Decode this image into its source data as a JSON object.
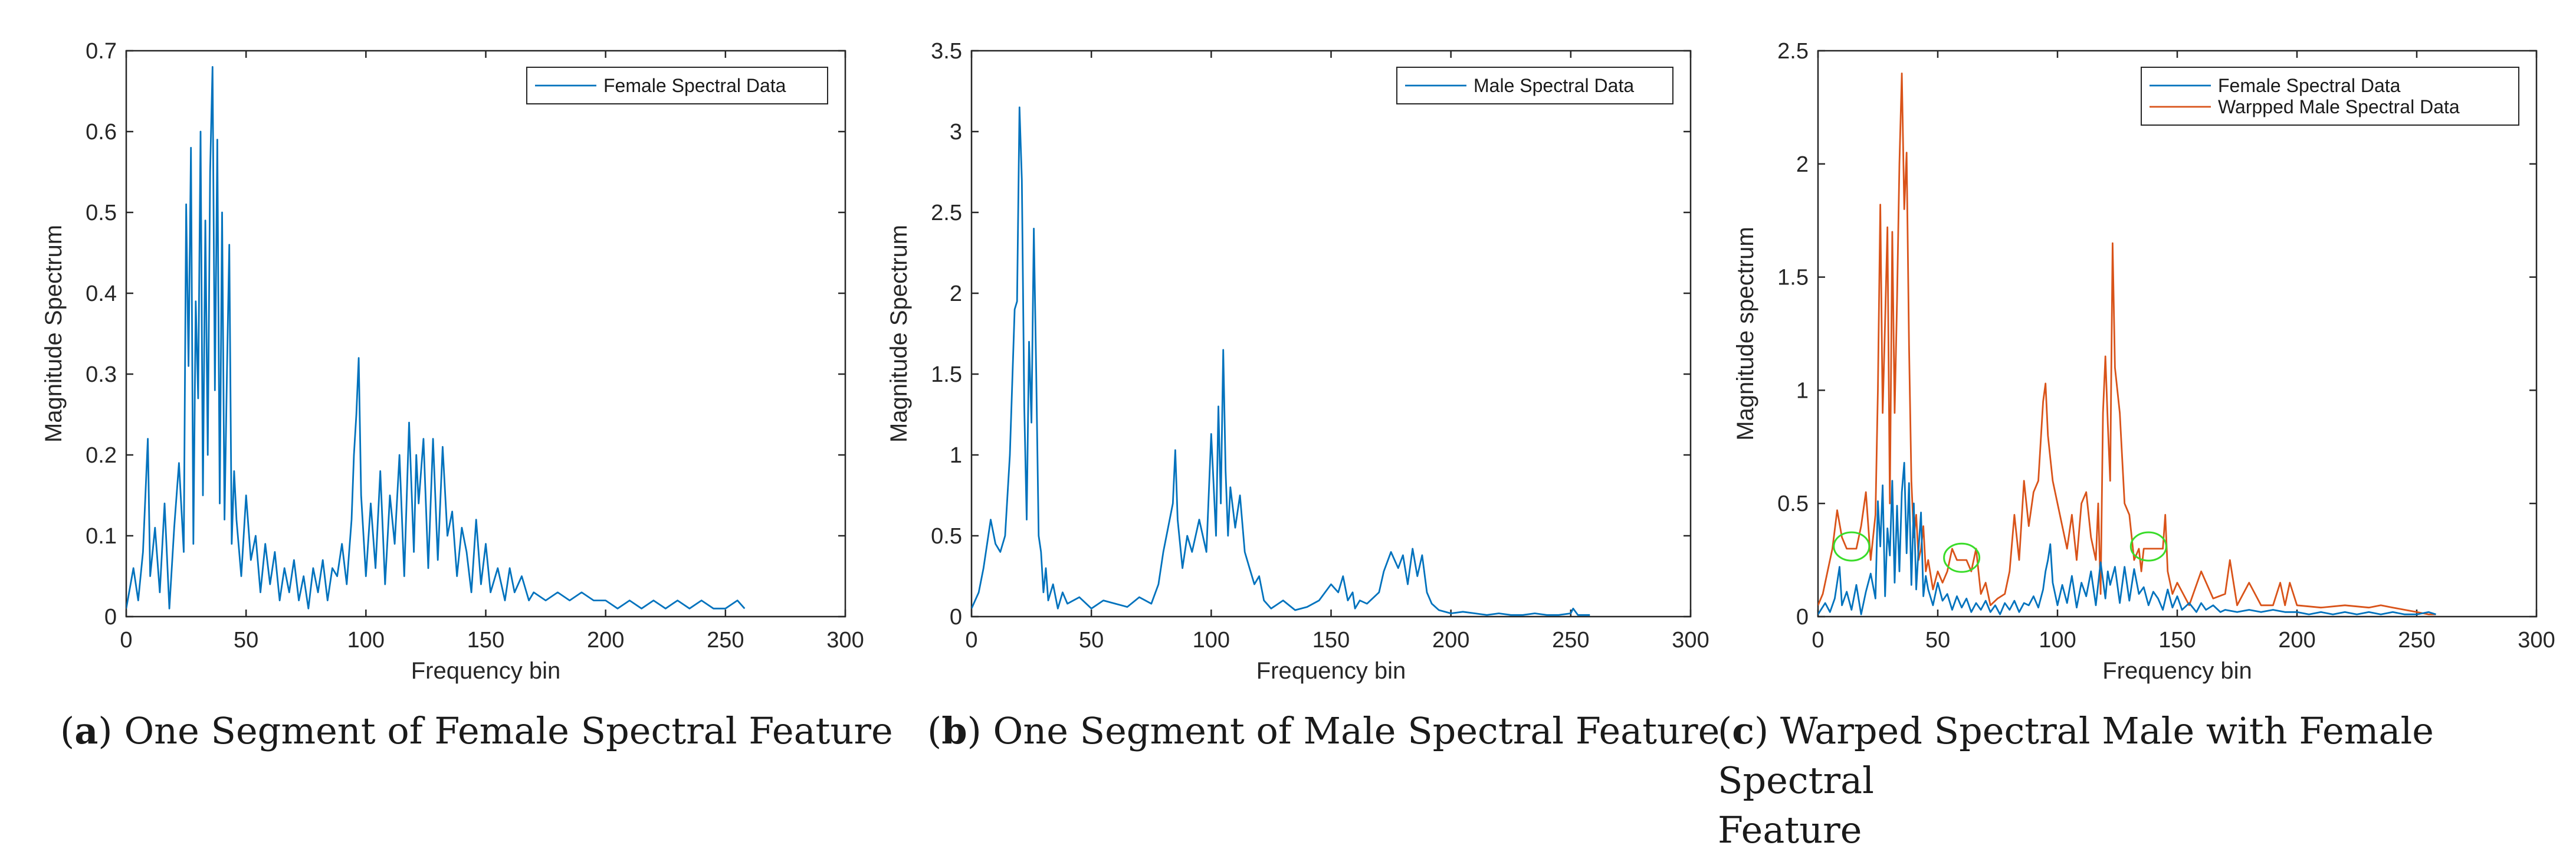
{
  "colors": {
    "blue": "#0072BD",
    "orange": "#D95319",
    "green": "#3ADC2A",
    "axis": "#262626"
  },
  "chart_data": [
    {
      "type": "line",
      "xlabel": "Frequency bin",
      "ylabel": "Magnitude Spectrum",
      "xlim": [
        0,
        300
      ],
      "ylim": [
        0,
        0.7
      ],
      "xticks": [
        0,
        50,
        100,
        150,
        200,
        250,
        300
      ],
      "yticks": [
        0,
        0.1,
        0.2,
        0.3,
        0.4,
        0.5,
        0.6,
        0.7
      ],
      "xtick_labels": [
        "0",
        "50",
        "100",
        "150",
        "200",
        "250",
        "300"
      ],
      "ytick_labels": [
        "0",
        "0.1",
        "0.2",
        "0.3",
        "0.4",
        "0.5",
        "0.6",
        "0.7"
      ],
      "legend_position": "top-right",
      "series": [
        {
          "name": "Female Spectral Data",
          "color": "#0072BD",
          "x": [
            0,
            3,
            5,
            7,
            9,
            10,
            12,
            14,
            16,
            18,
            20,
            22,
            24,
            25,
            26,
            27,
            28,
            29,
            30,
            31,
            32,
            33,
            34,
            35,
            36,
            37,
            38,
            39,
            40,
            41,
            42,
            43,
            44,
            45,
            46,
            48,
            50,
            52,
            54,
            56,
            58,
            60,
            62,
            64,
            66,
            68,
            70,
            72,
            74,
            76,
            78,
            80,
            82,
            84,
            86,
            88,
            90,
            92,
            94,
            95,
            96,
            97,
            98,
            100,
            102,
            104,
            106,
            108,
            110,
            112,
            114,
            116,
            118,
            120,
            121,
            122,
            124,
            126,
            128,
            130,
            132,
            134,
            136,
            138,
            140,
            142,
            144,
            146,
            148,
            150,
            152,
            155,
            158,
            160,
            162,
            165,
            168,
            170,
            175,
            180,
            185,
            190,
            195,
            200,
            205,
            210,
            215,
            220,
            225,
            230,
            235,
            240,
            245,
            250,
            255,
            258
          ],
          "y": [
            0.01,
            0.06,
            0.02,
            0.08,
            0.22,
            0.05,
            0.11,
            0.03,
            0.14,
            0.01,
            0.11,
            0.19,
            0.08,
            0.51,
            0.31,
            0.58,
            0.09,
            0.39,
            0.27,
            0.6,
            0.15,
            0.49,
            0.2,
            0.55,
            0.68,
            0.28,
            0.59,
            0.14,
            0.5,
            0.12,
            0.3,
            0.46,
            0.09,
            0.18,
            0.12,
            0.05,
            0.15,
            0.07,
            0.1,
            0.03,
            0.09,
            0.04,
            0.08,
            0.02,
            0.06,
            0.03,
            0.07,
            0.02,
            0.05,
            0.01,
            0.06,
            0.03,
            0.07,
            0.02,
            0.06,
            0.05,
            0.09,
            0.04,
            0.12,
            0.2,
            0.25,
            0.32,
            0.15,
            0.05,
            0.14,
            0.06,
            0.18,
            0.04,
            0.15,
            0.09,
            0.2,
            0.05,
            0.24,
            0.08,
            0.2,
            0.14,
            0.22,
            0.06,
            0.22,
            0.07,
            0.21,
            0.1,
            0.13,
            0.05,
            0.11,
            0.08,
            0.03,
            0.12,
            0.04,
            0.09,
            0.03,
            0.06,
            0.02,
            0.06,
            0.03,
            0.05,
            0.02,
            0.03,
            0.02,
            0.03,
            0.02,
            0.03,
            0.02,
            0.02,
            0.01,
            0.02,
            0.01,
            0.02,
            0.01,
            0.02,
            0.01,
            0.02,
            0.01,
            0.01,
            0.02,
            0.01
          ]
        }
      ]
    },
    {
      "type": "line",
      "xlabel": "Frequency bin",
      "ylabel": "Magnitude Spectrum",
      "xlim": [
        0,
        300
      ],
      "ylim": [
        0,
        3.5
      ],
      "xticks": [
        0,
        50,
        100,
        150,
        200,
        250,
        300
      ],
      "yticks": [
        0,
        0.5,
        1,
        1.5,
        2,
        2.5,
        3,
        3.5
      ],
      "xtick_labels": [
        "0",
        "50",
        "100",
        "150",
        "200",
        "250",
        "300"
      ],
      "ytick_labels": [
        "0",
        "0.5",
        "1",
        "1.5",
        "2",
        "2.5",
        "3",
        "3.5"
      ],
      "legend_position": "top-right",
      "series": [
        {
          "name": "Male Spectral Data",
          "color": "#0072BD",
          "x": [
            0,
            3,
            5,
            8,
            10,
            12,
            14,
            16,
            18,
            19,
            20,
            21,
            22,
            23,
            24,
            25,
            26,
            27,
            28,
            29,
            30,
            31,
            32,
            34,
            36,
            38,
            40,
            45,
            50,
            55,
            60,
            65,
            70,
            75,
            78,
            80,
            82,
            84,
            85,
            86,
            88,
            90,
            92,
            95,
            98,
            100,
            102,
            103,
            104,
            105,
            106,
            107,
            108,
            110,
            112,
            114,
            116,
            118,
            120,
            122,
            125,
            130,
            135,
            140,
            145,
            150,
            153,
            155,
            157,
            159,
            160,
            162,
            165,
            170,
            172,
            175,
            178,
            180,
            182,
            184,
            186,
            188,
            190,
            192,
            195,
            200,
            205,
            210,
            215,
            220,
            225,
            230,
            235,
            240,
            245,
            250,
            251,
            253,
            255,
            258
          ],
          "y": [
            0.05,
            0.15,
            0.3,
            0.6,
            0.45,
            0.4,
            0.5,
            1.0,
            1.9,
            1.95,
            3.15,
            2.7,
            1.3,
            0.6,
            1.7,
            1.2,
            2.4,
            1.5,
            0.5,
            0.4,
            0.15,
            0.3,
            0.1,
            0.2,
            0.05,
            0.15,
            0.08,
            0.12,
            0.05,
            0.1,
            0.08,
            0.06,
            0.12,
            0.08,
            0.2,
            0.4,
            0.55,
            0.7,
            1.03,
            0.6,
            0.3,
            0.5,
            0.4,
            0.6,
            0.4,
            1.13,
            0.5,
            1.3,
            0.7,
            1.65,
            0.9,
            0.5,
            0.8,
            0.55,
            0.75,
            0.4,
            0.3,
            0.2,
            0.25,
            0.1,
            0.05,
            0.1,
            0.04,
            0.06,
            0.1,
            0.2,
            0.15,
            0.25,
            0.1,
            0.15,
            0.05,
            0.1,
            0.08,
            0.15,
            0.28,
            0.4,
            0.3,
            0.38,
            0.2,
            0.42,
            0.25,
            0.38,
            0.15,
            0.08,
            0.04,
            0.02,
            0.03,
            0.02,
            0.01,
            0.02,
            0.01,
            0.01,
            0.02,
            0.01,
            0.01,
            0.02,
            0.05,
            0.01,
            0.01,
            0.01
          ]
        }
      ]
    },
    {
      "type": "line",
      "xlabel": "Frequency bin",
      "ylabel": "Magnitude spectrum",
      "xlim": [
        0,
        300
      ],
      "ylim": [
        0,
        2.5
      ],
      "xticks": [
        0,
        50,
        100,
        150,
        200,
        250,
        300
      ],
      "yticks": [
        0,
        0.5,
        1,
        1.5,
        2,
        2.5
      ],
      "xtick_labels": [
        "0",
        "50",
        "100",
        "150",
        "200",
        "250",
        "300"
      ],
      "ytick_labels": [
        "0",
        "0.5",
        "1",
        "1.5",
        "2",
        "2.5"
      ],
      "legend_position": "top-right",
      "annotations": [
        {
          "shape": "ellipse",
          "x": 14,
          "y": 0.31
        },
        {
          "shape": "ellipse",
          "x": 60,
          "y": 0.26
        },
        {
          "shape": "ellipse",
          "x": 138,
          "y": 0.31
        }
      ],
      "series": [
        {
          "name": "Female Spectral Data",
          "color": "#0072BD",
          "x": [
            0,
            3,
            5,
            7,
            9,
            10,
            12,
            14,
            16,
            18,
            20,
            22,
            24,
            25,
            26,
            27,
            28,
            29,
            30,
            31,
            32,
            33,
            34,
            35,
            36,
            37,
            38,
            39,
            40,
            41,
            42,
            43,
            44,
            45,
            46,
            48,
            50,
            52,
            54,
            56,
            58,
            60,
            62,
            64,
            66,
            68,
            70,
            72,
            74,
            76,
            78,
            80,
            82,
            84,
            86,
            88,
            90,
            92,
            94,
            95,
            96,
            97,
            98,
            100,
            102,
            104,
            106,
            108,
            110,
            112,
            114,
            116,
            118,
            120,
            121,
            122,
            124,
            126,
            128,
            130,
            132,
            134,
            136,
            138,
            140,
            142,
            144,
            146,
            148,
            150,
            152,
            155,
            158,
            160,
            162,
            165,
            168,
            170,
            175,
            180,
            185,
            190,
            195,
            200,
            205,
            210,
            215,
            220,
            225,
            230,
            235,
            240,
            245,
            250,
            255,
            258
          ],
          "y": [
            0.01,
            0.06,
            0.02,
            0.08,
            0.22,
            0.05,
            0.11,
            0.03,
            0.14,
            0.01,
            0.11,
            0.19,
            0.08,
            0.51,
            0.31,
            0.58,
            0.09,
            0.39,
            0.27,
            0.6,
            0.15,
            0.49,
            0.2,
            0.55,
            0.68,
            0.28,
            0.59,
            0.14,
            0.5,
            0.12,
            0.3,
            0.46,
            0.09,
            0.18,
            0.12,
            0.05,
            0.15,
            0.07,
            0.1,
            0.03,
            0.09,
            0.04,
            0.08,
            0.02,
            0.06,
            0.03,
            0.07,
            0.02,
            0.05,
            0.01,
            0.06,
            0.03,
            0.07,
            0.02,
            0.06,
            0.05,
            0.09,
            0.04,
            0.12,
            0.2,
            0.25,
            0.32,
            0.15,
            0.05,
            0.14,
            0.06,
            0.18,
            0.04,
            0.15,
            0.09,
            0.2,
            0.05,
            0.24,
            0.08,
            0.2,
            0.14,
            0.22,
            0.06,
            0.22,
            0.07,
            0.21,
            0.1,
            0.13,
            0.05,
            0.11,
            0.08,
            0.03,
            0.12,
            0.04,
            0.09,
            0.03,
            0.06,
            0.02,
            0.06,
            0.03,
            0.05,
            0.02,
            0.03,
            0.02,
            0.03,
            0.02,
            0.03,
            0.02,
            0.02,
            0.01,
            0.02,
            0.01,
            0.02,
            0.01,
            0.02,
            0.01,
            0.02,
            0.01,
            0.01,
            0.02,
            0.01
          ]
        },
        {
          "name": "Warpped Male Spectral Data",
          "color": "#D95319",
          "x": [
            0,
            2,
            4,
            6,
            8,
            10,
            12,
            14,
            16,
            18,
            20,
            22,
            24,
            25,
            26,
            27,
            28,
            29,
            30,
            31,
            32,
            33,
            34,
            35,
            36,
            37,
            38,
            39,
            40,
            41,
            42,
            43,
            44,
            45,
            46,
            48,
            50,
            52,
            54,
            56,
            58,
            60,
            62,
            64,
            66,
            68,
            70,
            72,
            75,
            78,
            80,
            82,
            84,
            86,
            88,
            90,
            92,
            94,
            95,
            96,
            97,
            98,
            100,
            102,
            104,
            106,
            108,
            110,
            112,
            114,
            116,
            117,
            118,
            119,
            120,
            121,
            122,
            123,
            124,
            126,
            128,
            130,
            132,
            134,
            135,
            136,
            138,
            140,
            142,
            144,
            145,
            146,
            148,
            150,
            155,
            160,
            165,
            170,
            172,
            175,
            180,
            185,
            190,
            193,
            195,
            197,
            200,
            210,
            220,
            230,
            235,
            240,
            245,
            250,
            255,
            258
          ],
          "y": [
            0.05,
            0.1,
            0.2,
            0.3,
            0.47,
            0.35,
            0.3,
            0.3,
            0.3,
            0.4,
            0.55,
            0.25,
            0.45,
            1.0,
            1.82,
            0.9,
            1.3,
            1.72,
            0.5,
            1.7,
            0.9,
            1.4,
            2.0,
            2.4,
            1.8,
            2.05,
            1.2,
            0.6,
            0.35,
            0.45,
            0.25,
            0.3,
            0.4,
            0.2,
            0.25,
            0.12,
            0.2,
            0.15,
            0.2,
            0.3,
            0.25,
            0.25,
            0.25,
            0.2,
            0.3,
            0.1,
            0.15,
            0.05,
            0.08,
            0.1,
            0.2,
            0.45,
            0.25,
            0.6,
            0.4,
            0.55,
            0.6,
            0.95,
            1.03,
            0.8,
            0.7,
            0.6,
            0.5,
            0.4,
            0.3,
            0.45,
            0.25,
            0.5,
            0.55,
            0.35,
            0.25,
            0.5,
            0.1,
            0.9,
            1.15,
            0.85,
            0.6,
            1.65,
            1.1,
            0.9,
            0.5,
            0.45,
            0.25,
            0.3,
            0.2,
            0.3,
            0.3,
            0.3,
            0.3,
            0.3,
            0.45,
            0.2,
            0.1,
            0.15,
            0.05,
            0.2,
            0.08,
            0.1,
            0.25,
            0.05,
            0.15,
            0.05,
            0.05,
            0.15,
            0.05,
            0.15,
            0.05,
            0.04,
            0.05,
            0.04,
            0.05,
            0.04,
            0.03,
            0.02,
            0.01,
            0.01
          ]
        }
      ]
    }
  ],
  "captions": [
    {
      "letter": "a",
      "lines": [
        "One Segment of Female Spectral Feature"
      ]
    },
    {
      "letter": "b",
      "lines": [
        "One Segment of Male Spectral Feature"
      ]
    },
    {
      "letter": "c",
      "lines": [
        "Warped Spectral Male with Female Spectral",
        "Feature"
      ]
    }
  ]
}
